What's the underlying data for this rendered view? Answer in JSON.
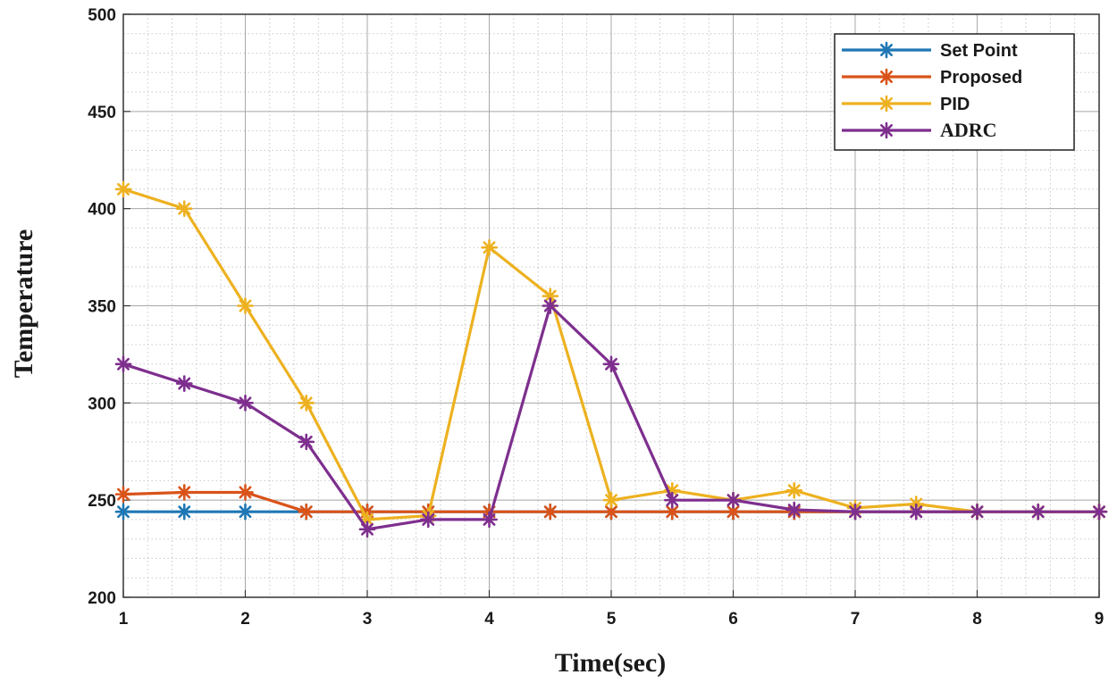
{
  "chart_data": {
    "type": "line",
    "xlabel": "Time(sec)",
    "ylabel": "Temperature",
    "xlim": [
      1,
      9
    ],
    "ylim": [
      200,
      500
    ],
    "xticks": [
      "1",
      "2",
      "3",
      "4",
      "5",
      "6",
      "7",
      "8",
      "9"
    ],
    "yticks": [
      "200",
      "250",
      "300",
      "350",
      "400",
      "450",
      "500"
    ],
    "grid": true,
    "minor_grid": true,
    "legend_position": "top-right",
    "series": [
      {
        "name": "Set Point",
        "color": "#1f77b4",
        "marker": "asterisk",
        "x": [
          1,
          1.5,
          2,
          2.5,
          3,
          3.5,
          4,
          4.5,
          5,
          5.5,
          6,
          6.5,
          7,
          7.5,
          8,
          8.5,
          9
        ],
        "y": [
          244,
          244,
          244,
          244,
          244,
          244,
          244,
          244,
          244,
          244,
          244,
          244,
          244,
          244,
          244,
          244,
          244
        ]
      },
      {
        "name": "Proposed",
        "color": "#d95319",
        "marker": "asterisk",
        "x": [
          1,
          1.5,
          2,
          2.5,
          3,
          3.5,
          4,
          4.5,
          5,
          5.5,
          6,
          6.5,
          7,
          7.5,
          8,
          8.5,
          9
        ],
        "y": [
          253,
          254,
          254,
          244,
          244,
          244,
          244,
          244,
          244,
          244,
          244,
          244,
          244,
          244,
          244,
          244,
          244
        ]
      },
      {
        "name": "PID",
        "color": "#edb120",
        "marker": "asterisk",
        "x": [
          1,
          1.5,
          2,
          2.5,
          3,
          3.5,
          4,
          4.5,
          5,
          5.5,
          6,
          6.5,
          7,
          7.5,
          8,
          8.5,
          9
        ],
        "y": [
          410,
          400,
          350,
          300,
          240,
          242,
          380,
          355,
          250,
          255,
          250,
          255,
          246,
          248,
          244,
          244,
          244
        ]
      },
      {
        "name": "ADRC",
        "color": "#7e2f8e",
        "marker": "asterisk",
        "x": [
          1,
          1.5,
          2,
          2.5,
          3,
          3.5,
          4,
          4.5,
          5,
          5.5,
          6,
          6.5,
          7,
          7.5,
          8,
          8.5,
          9
        ],
        "y": [
          320,
          310,
          300,
          280,
          235,
          240,
          240,
          350,
          320,
          250,
          250,
          245,
          244,
          244,
          244,
          244,
          244
        ]
      }
    ]
  }
}
